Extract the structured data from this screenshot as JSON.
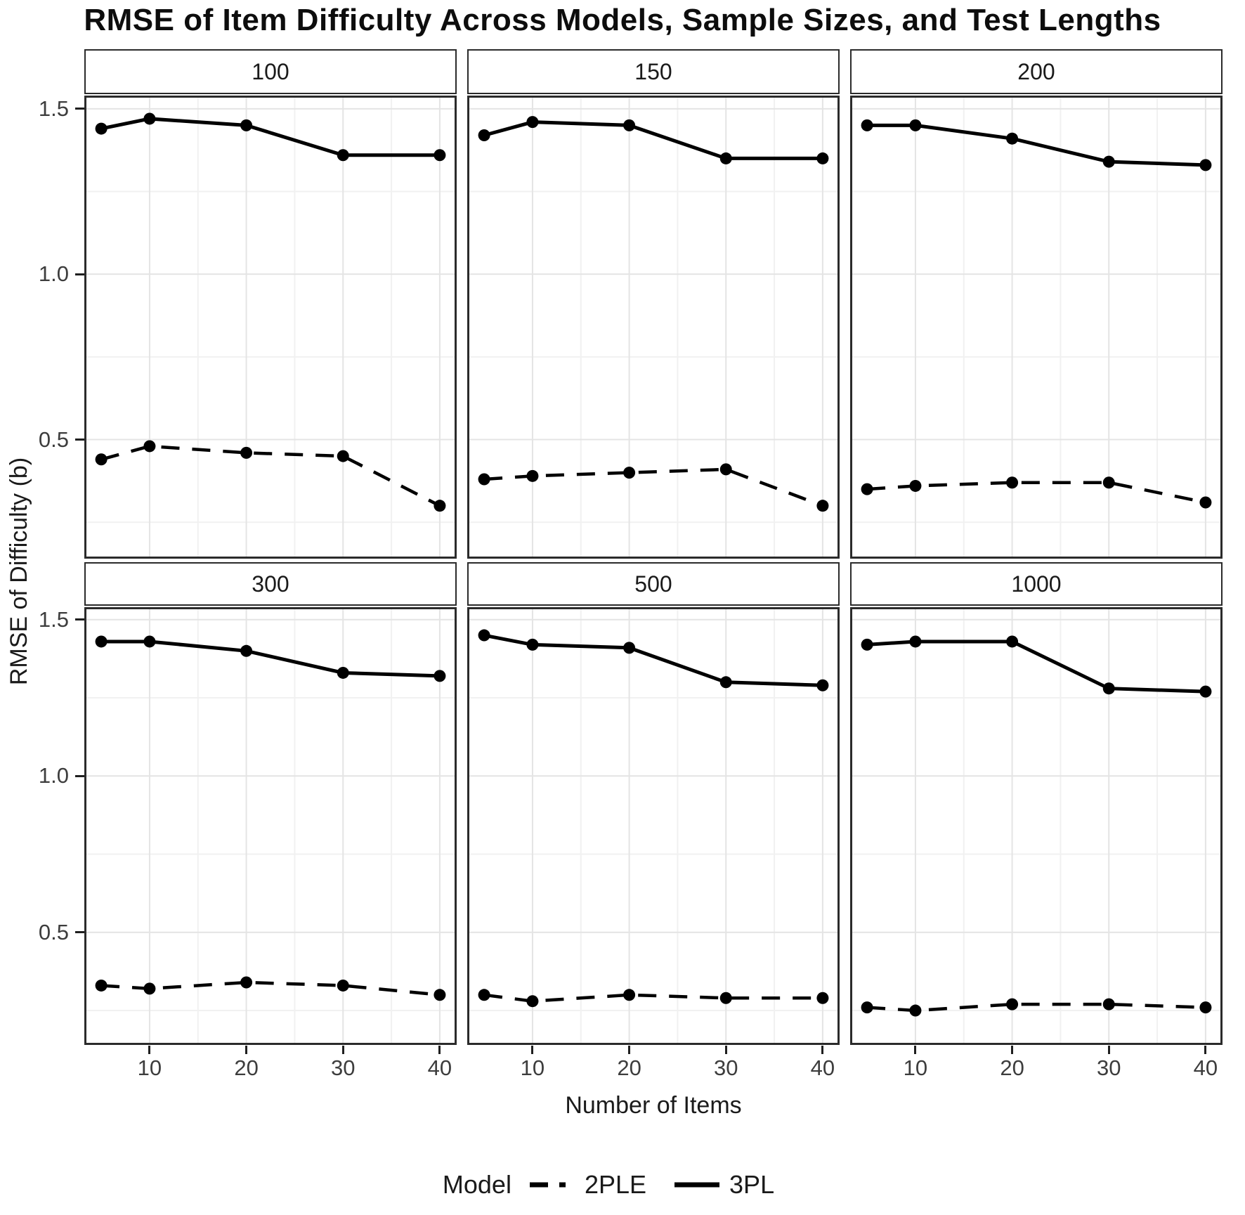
{
  "chart_data": {
    "type": "line",
    "title": "RMSE of Item Difficulty Across Models, Sample Sizes, and Test Lengths",
    "xlabel": "Number of Items",
    "ylabel": "RMSE of Difficulty (b)",
    "x": [
      5,
      10,
      20,
      30,
      40
    ],
    "x_ticks": [
      10,
      20,
      30,
      40
    ],
    "y_ticks": [
      0.5,
      1.0,
      1.5
    ],
    "ylim": [
      0.14,
      1.54
    ],
    "xlim": [
      3.25,
      41.75
    ],
    "grid": "on",
    "legend_position": "bottom",
    "facets": [
      {
        "label": "100",
        "series": [
          {
            "name": "2PLE",
            "style": "dashed",
            "values": [
              0.44,
              0.48,
              0.46,
              0.45,
              0.3
            ]
          },
          {
            "name": "3PL",
            "style": "solid",
            "values": [
              1.44,
              1.47,
              1.45,
              1.36,
              1.36
            ]
          }
        ]
      },
      {
        "label": "150",
        "series": [
          {
            "name": "2PLE",
            "style": "dashed",
            "values": [
              0.38,
              0.39,
              0.4,
              0.41,
              0.3
            ]
          },
          {
            "name": "3PL",
            "style": "solid",
            "values": [
              1.42,
              1.46,
              1.45,
              1.35,
              1.35
            ]
          }
        ]
      },
      {
        "label": "200",
        "series": [
          {
            "name": "2PLE",
            "style": "dashed",
            "values": [
              0.35,
              0.36,
              0.37,
              0.37,
              0.31
            ]
          },
          {
            "name": "3PL",
            "style": "solid",
            "values": [
              1.45,
              1.45,
              1.41,
              1.34,
              1.33
            ]
          }
        ]
      },
      {
        "label": "300",
        "series": [
          {
            "name": "2PLE",
            "style": "dashed",
            "values": [
              0.33,
              0.32,
              0.34,
              0.33,
              0.3
            ]
          },
          {
            "name": "3PL",
            "style": "solid",
            "values": [
              1.43,
              1.43,
              1.4,
              1.33,
              1.32
            ]
          }
        ]
      },
      {
        "label": "500",
        "series": [
          {
            "name": "2PLE",
            "style": "dashed",
            "values": [
              0.3,
              0.28,
              0.3,
              0.29,
              0.29
            ]
          },
          {
            "name": "3PL",
            "style": "solid",
            "values": [
              1.45,
              1.42,
              1.41,
              1.3,
              1.29
            ]
          }
        ]
      },
      {
        "label": "1000",
        "series": [
          {
            "name": "2PLE",
            "style": "dashed",
            "values": [
              0.26,
              0.25,
              0.27,
              0.27,
              0.26
            ]
          },
          {
            "name": "3PL",
            "style": "solid",
            "values": [
              1.42,
              1.43,
              1.43,
              1.28,
              1.27
            ]
          }
        ]
      }
    ],
    "legend": {
      "title": "Model",
      "entries": [
        {
          "label": "2PLE",
          "line_style": "dashed"
        },
        {
          "label": "3PL",
          "line_style": "solid"
        }
      ]
    },
    "colors": {
      "line": "#000000",
      "grid_major": "#e4e4e4",
      "grid_minor": "#f1f1f1",
      "panel_border": "#2b2b2b",
      "tick_label": "#3d3d3d",
      "text": "#1a1a1a"
    }
  }
}
